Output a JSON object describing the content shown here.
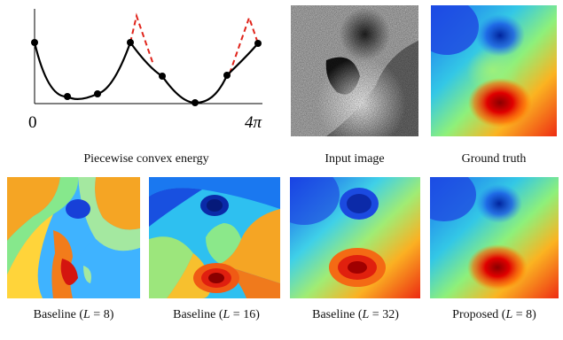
{
  "top_row": {
    "energy_caption": "Piecewise convex energy",
    "input_caption": "Input image",
    "ground_truth_caption": "Ground truth",
    "axis_start_label": "0",
    "axis_end_label": "4π"
  },
  "bottom_row": [
    {
      "prefix": "Baseline (",
      "var": "L",
      "rest": " = 8)"
    },
    {
      "prefix": "Baseline (",
      "var": "L",
      "rest": " = 16)"
    },
    {
      "prefix": "Baseline (",
      "var": "L",
      "rest": " = 32)"
    },
    {
      "prefix": "Proposed (",
      "var": "L",
      "rest": " = 8)"
    }
  ],
  "colors": {
    "curve": "#000000",
    "dashed_extension": "#e0241b",
    "colormap": "jet"
  }
}
